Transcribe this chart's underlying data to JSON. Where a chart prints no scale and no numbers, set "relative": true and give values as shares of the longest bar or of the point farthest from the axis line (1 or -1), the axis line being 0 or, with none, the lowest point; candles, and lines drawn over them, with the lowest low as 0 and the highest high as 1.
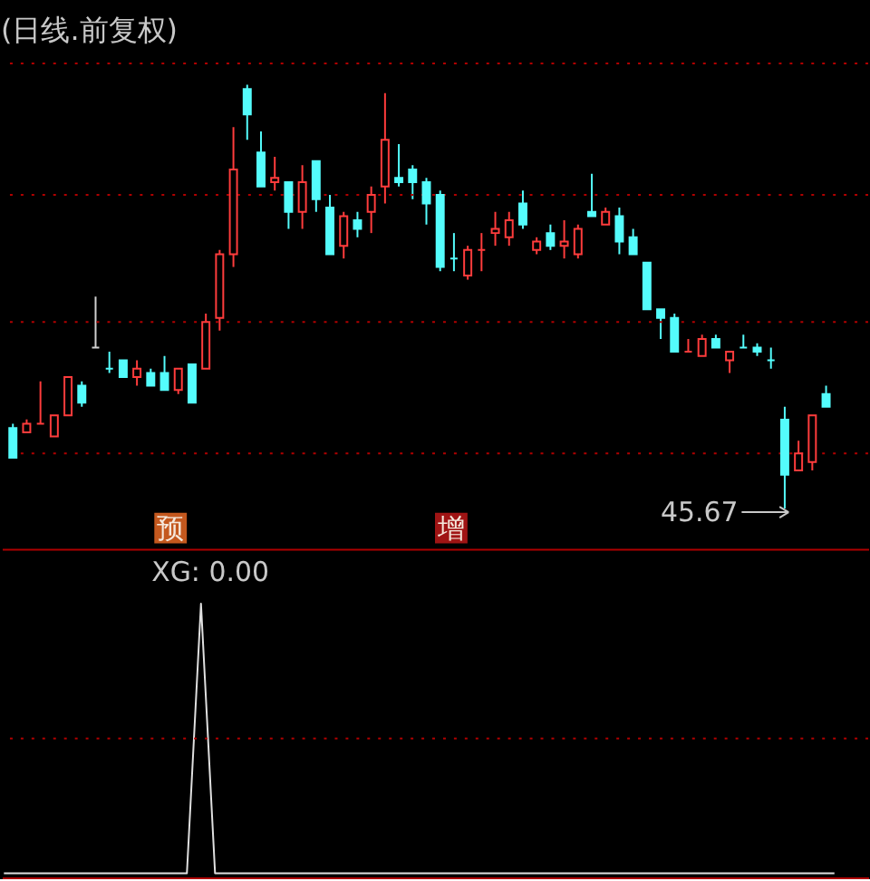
{
  "chart_data": [
    {
      "type": "candlestick",
      "title": "(日线.前复权)",
      "relative": true,
      "categories": [
        null,
        null,
        null,
        null,
        null,
        null,
        null,
        null,
        null,
        null,
        null,
        null,
        null,
        null,
        null,
        null,
        null,
        null,
        null,
        null,
        null,
        null,
        null,
        null,
        null,
        null,
        null,
        null,
        null,
        null,
        null,
        null,
        null,
        null,
        null,
        null,
        null,
        null,
        null,
        null,
        null,
        null,
        null,
        null,
        null,
        null,
        null,
        null,
        null,
        null,
        null,
        null,
        null,
        null,
        null,
        null,
        null,
        null,
        null,
        null
      ],
      "ohlc": [
        [
          0.19,
          0.2,
          0.12,
          0.12
        ],
        [
          0.18,
          0.21,
          0.18,
          0.2
        ],
        [
          0.2,
          0.3,
          0.2,
          0.2
        ],
        [
          0.17,
          0.22,
          0.17,
          0.22
        ],
        [
          0.22,
          0.31,
          0.22,
          0.31
        ],
        [
          0.29,
          0.3,
          0.24,
          0.25
        ],
        [
          0.38,
          0.5,
          0.38,
          0.38
        ],
        [
          0.33,
          0.37,
          0.32,
          0.33
        ],
        [
          0.35,
          0.35,
          0.31,
          0.31
        ],
        [
          0.31,
          0.35,
          0.29,
          0.33
        ],
        [
          0.32,
          0.33,
          0.29,
          0.29
        ],
        [
          0.32,
          0.36,
          0.28,
          0.28
        ],
        [
          0.28,
          0.33,
          0.27,
          0.33
        ],
        [
          0.34,
          0.34,
          0.25,
          0.25
        ],
        [
          0.33,
          0.46,
          0.33,
          0.44
        ],
        [
          0.45,
          0.61,
          0.42,
          0.6
        ],
        [
          0.6,
          0.9,
          0.57,
          0.8
        ],
        [
          0.99,
          1,
          0.87,
          0.93
        ],
        [
          0.84,
          0.89,
          0.76,
          0.76
        ],
        [
          0.77,
          0.83,
          0.75,
          0.78
        ],
        [
          0.77,
          0.77,
          0.66,
          0.7
        ],
        [
          0.7,
          0.81,
          0.66,
          0.77
        ],
        [
          0.82,
          0.82,
          0.7,
          0.73
        ],
        [
          0.71,
          0.74,
          0.6,
          0.6
        ],
        [
          0.62,
          0.7,
          0.59,
          0.69
        ],
        [
          0.68,
          0.7,
          0.64,
          0.66
        ],
        [
          0.7,
          0.76,
          0.65,
          0.74
        ],
        [
          0.76,
          0.98,
          0.72,
          0.87
        ],
        [
          0.78,
          0.86,
          0.76,
          0.77
        ],
        [
          0.8,
          0.81,
          0.73,
          0.77
        ],
        [
          0.77,
          0.78,
          0.67,
          0.72
        ],
        [
          0.74,
          0.75,
          0.56,
          0.57
        ],
        [
          0.59,
          0.65,
          0.56,
          0.59
        ],
        [
          0.55,
          0.62,
          0.54,
          0.61
        ],
        [
          0.61,
          0.65,
          0.56,
          0.61
        ],
        [
          0.65,
          0.7,
          0.62,
          0.66
        ],
        [
          0.64,
          0.7,
          0.62,
          0.68
        ],
        [
          0.72,
          0.75,
          0.66,
          0.67
        ],
        [
          0.61,
          0.64,
          0.6,
          0.63
        ],
        [
          0.65,
          0.67,
          0.61,
          0.62
        ],
        [
          0.62,
          0.68,
          0.59,
          0.63
        ],
        [
          0.6,
          0.67,
          0.59,
          0.66
        ],
        [
          0.7,
          0.79,
          0.69,
          0.69
        ],
        [
          0.67,
          0.71,
          0.67,
          0.7
        ],
        [
          0.69,
          0.71,
          0.6,
          0.63
        ],
        [
          0.64,
          0.66,
          0.6,
          0.6
        ],
        [
          0.58,
          0.58,
          0.47,
          0.47
        ],
        [
          0.47,
          0.47,
          0.4,
          0.45
        ],
        [
          0.45,
          0.46,
          0.37,
          0.37
        ],
        [
          0.37,
          0.4,
          0.37,
          0.37
        ],
        [
          0.36,
          0.41,
          0.36,
          0.4
        ],
        [
          0.4,
          0.41,
          0.38,
          0.38
        ],
        [
          0.35,
          0.37,
          0.32,
          0.37
        ],
        [
          0.38,
          0.41,
          0.38,
          0.38
        ],
        [
          0.38,
          0.39,
          0.36,
          0.37
        ],
        [
          0.35,
          0.38,
          0.33,
          0.35
        ],
        [
          0.21,
          0.24,
          0,
          0.08
        ],
        [
          0.09,
          0.16,
          0.09,
          0.13
        ],
        [
          0.11,
          0.22,
          0.09,
          0.22
        ],
        [
          0.27,
          0.29,
          0.24,
          0.24
        ]
      ],
      "colors": [
        "#54fcfc",
        "#ff3c3c",
        "#ff3c3c",
        "#ff3c3c",
        "#ff3c3c",
        "#54fcfc",
        "#d0d0d0",
        "#54fcfc",
        "#54fcfc",
        "#ff3c3c",
        "#54fcfc",
        "#54fcfc",
        "#ff3c3c",
        "#54fcfc",
        "#ff3c3c",
        "#ff3c3c",
        "#ff3c3c",
        "#54fcfc",
        "#54fcfc",
        "#ff3c3c",
        "#54fcfc",
        "#ff3c3c",
        "#54fcfc",
        "#54fcfc",
        "#ff3c3c",
        "#54fcfc",
        "#ff3c3c",
        "#ff3c3c",
        "#54fcfc",
        "#54fcfc",
        "#54fcfc",
        "#54fcfc",
        "#54fcfc",
        "#ff3c3c",
        "#ff3c3c",
        "#ff3c3c",
        "#ff3c3c",
        "#54fcfc",
        "#ff3c3c",
        "#54fcfc",
        "#ff3c3c",
        "#ff3c3c",
        "#54fcfc",
        "#ff3c3c",
        "#54fcfc",
        "#54fcfc",
        "#54fcfc",
        "#54fcfc",
        "#54fcfc",
        "#ff3c3c",
        "#ff3c3c",
        "#54fcfc",
        "#ff3c3c",
        "#54fcfc",
        "#54fcfc",
        "#54fcfc",
        "#54fcfc",
        "#ff3c3c",
        "#ff3c3c",
        "#54fcfc"
      ],
      "ref_lines": [
        {
          "axis": "y",
          "value": 0.13,
          "color": "#b00000",
          "line_style": "dotted"
        },
        {
          "axis": "y",
          "value": 0.44,
          "color": "#b00000",
          "line_style": "dotted"
        },
        {
          "axis": "y",
          "value": 0.74,
          "color": "#b00000",
          "line_style": "dotted"
        },
        {
          "axis": "y",
          "value": 1.05,
          "color": "#b00000",
          "line_style": "dotted"
        }
      ],
      "annotations": [
        "预",
        "增",
        "45.67"
      ]
    },
    {
      "type": "line",
      "title": "XG: 0.00",
      "relative": true,
      "categories": [
        null,
        null,
        null,
        null,
        null,
        null,
        null,
        null,
        null,
        null,
        null,
        null,
        null,
        null,
        null,
        null,
        null,
        null,
        null,
        null,
        null,
        null,
        null,
        null,
        null,
        null,
        null,
        null,
        null,
        null,
        null,
        null,
        null,
        null,
        null,
        null,
        null,
        null,
        null,
        null,
        null,
        null,
        null,
        null,
        null,
        null,
        null,
        null,
        null,
        null,
        null,
        null,
        null,
        null,
        null,
        null,
        null,
        null,
        null,
        null
      ],
      "series": [
        {
          "color": "#e0e0e0",
          "values": [
            0,
            0,
            0,
            0,
            0,
            0,
            0,
            0,
            0,
            0,
            0,
            0,
            0,
            0,
            1,
            0,
            0,
            0,
            0,
            0,
            0,
            0,
            0,
            0,
            0,
            0,
            0,
            0,
            0,
            0,
            0,
            0,
            0,
            0,
            0,
            0,
            0,
            0,
            0,
            0,
            0,
            0,
            0,
            0,
            0,
            0,
            0,
            0,
            0,
            0,
            0,
            0,
            0,
            0,
            0,
            0,
            0,
            0,
            0,
            0
          ]
        }
      ],
      "ref_lines": [
        {
          "axis": "y",
          "value": 0.5,
          "color": "#b00000",
          "line_style": "dotted"
        }
      ]
    }
  ]
}
